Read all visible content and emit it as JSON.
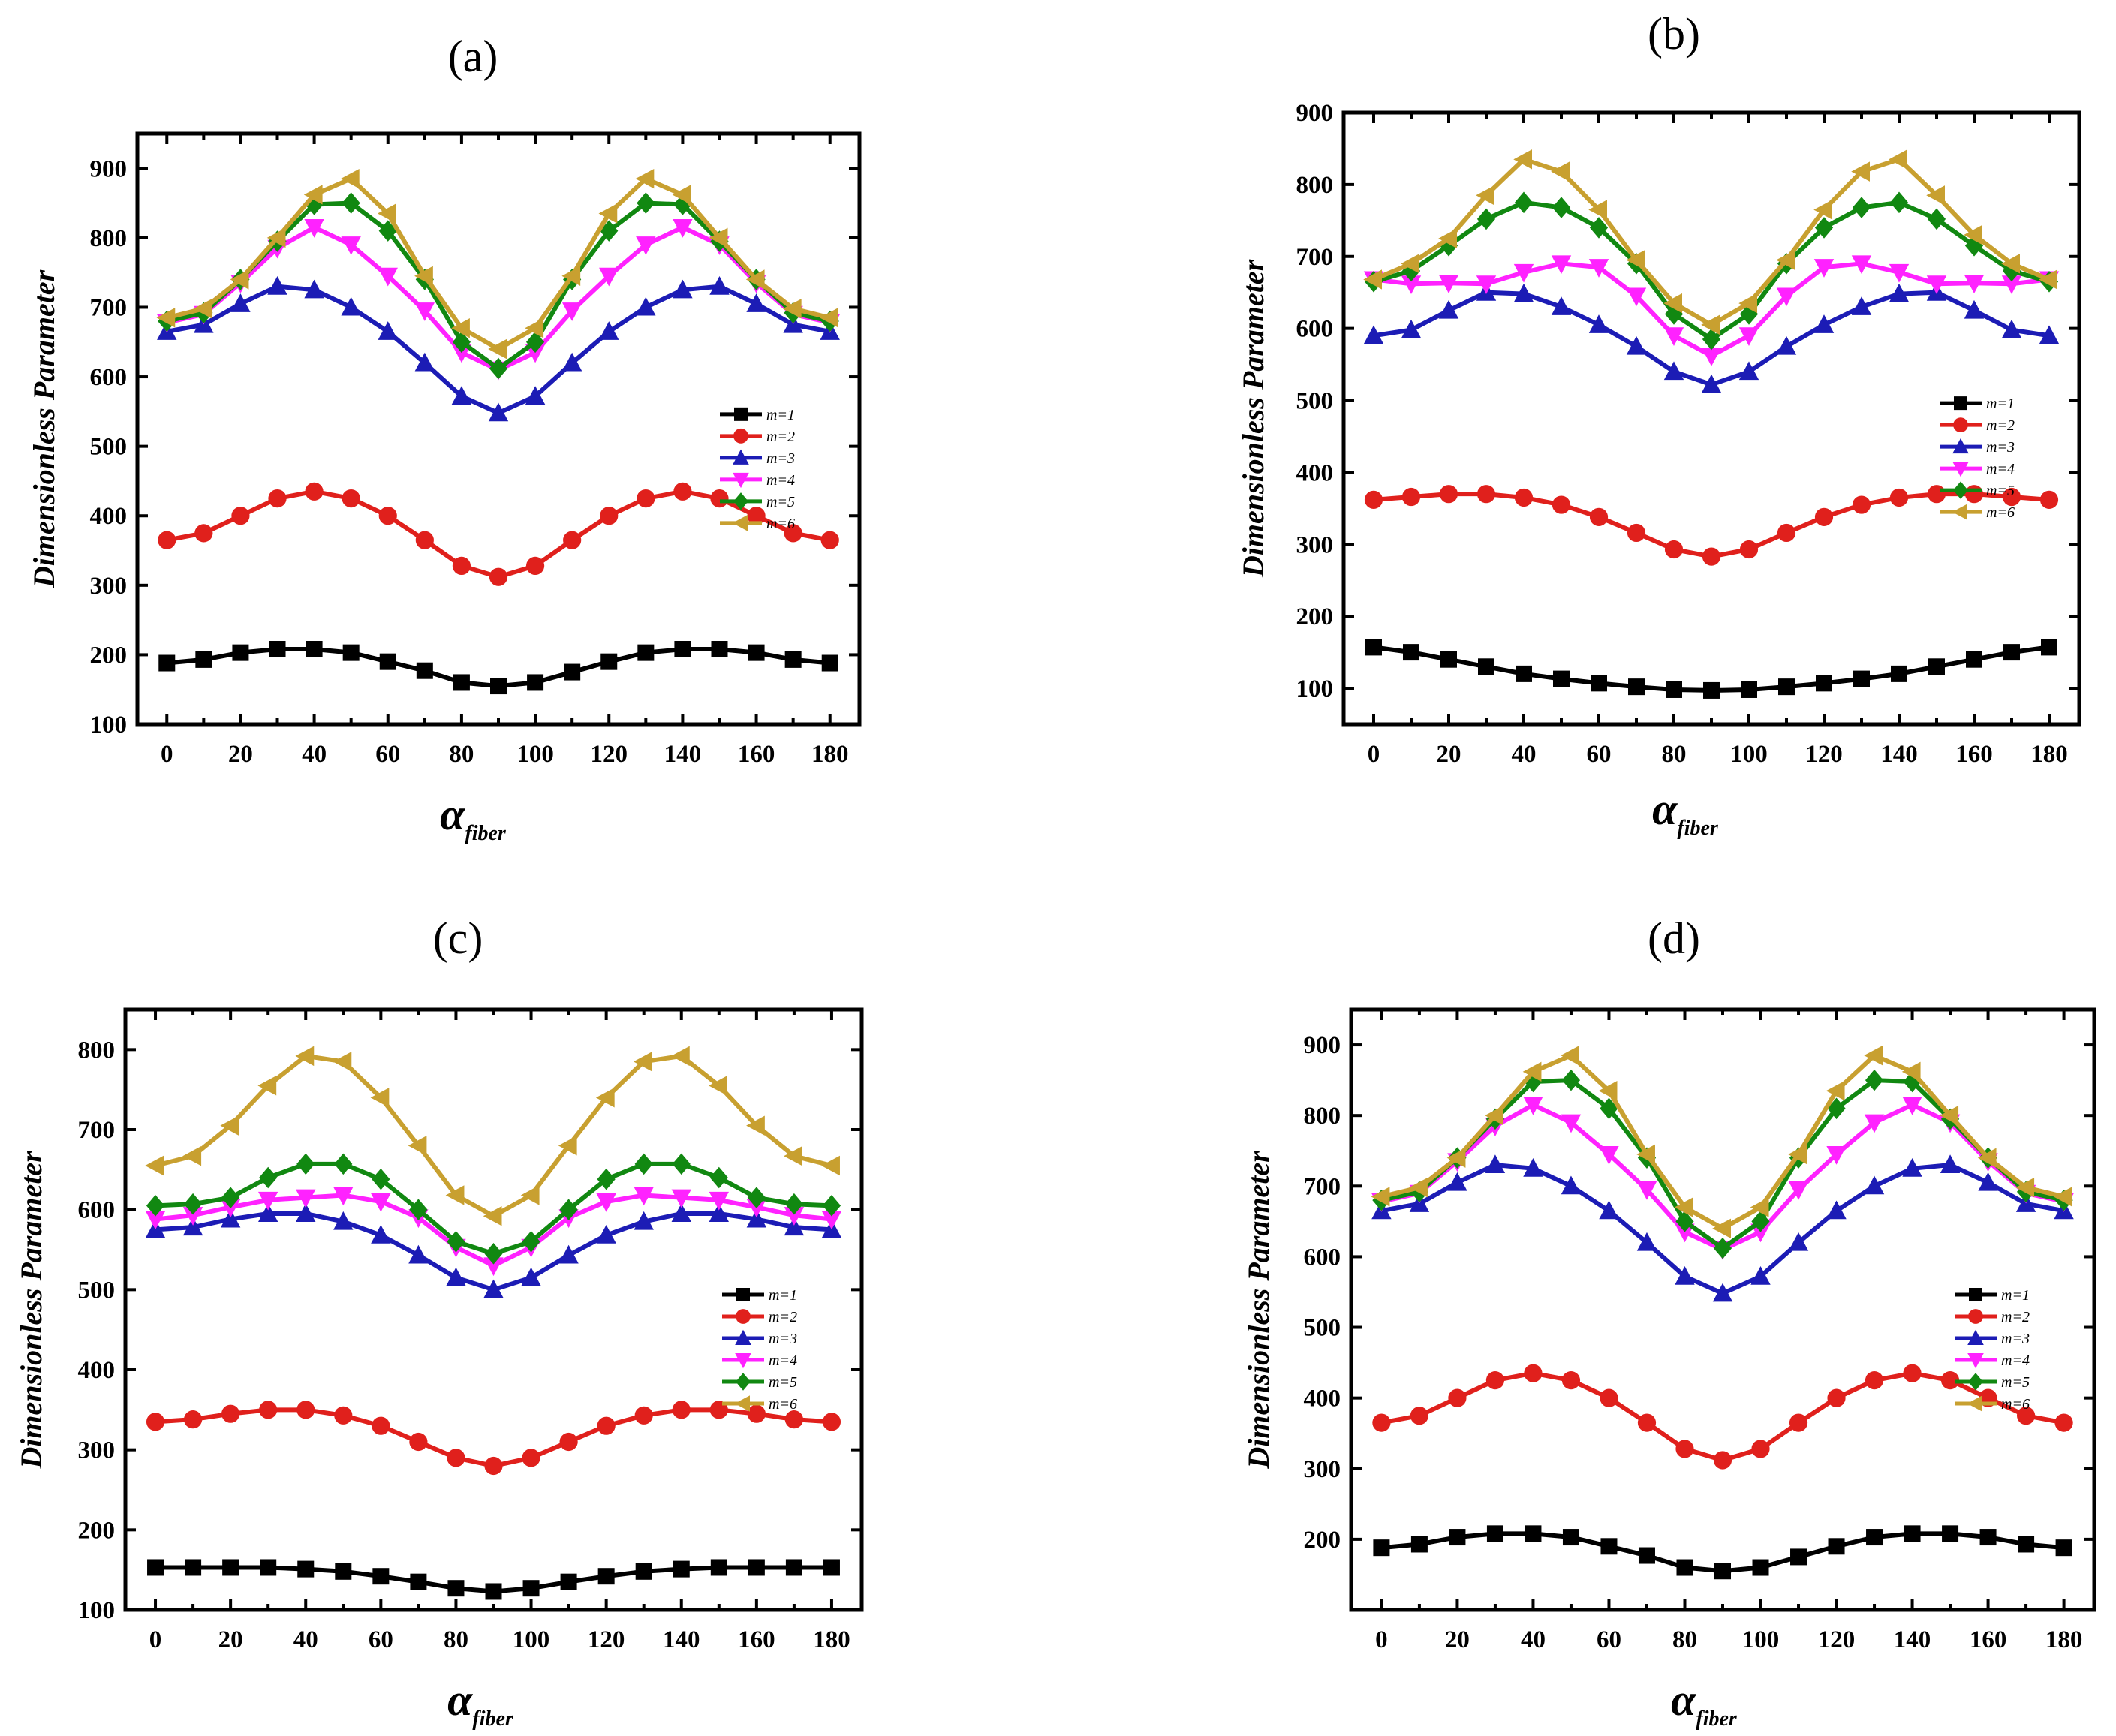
{
  "figure": {
    "xlabel_main": "α",
    "xlabel_sub": "fiber",
    "ylabel": "Dimensionless Parameter"
  },
  "chart_data": [
    {
      "panel": "(a)",
      "type": "line",
      "ylim": [
        100,
        950
      ],
      "yticks": [
        100,
        200,
        300,
        400,
        500,
        600,
        700,
        800,
        900
      ],
      "xlim": [
        -8,
        188
      ],
      "xticks": [
        0,
        20,
        40,
        60,
        80,
        100,
        120,
        140,
        160,
        180
      ],
      "xlabel": "α fiber",
      "ylabel": "Dimensionless Parameter",
      "legend_position": "right-middle",
      "x": [
        0,
        10,
        20,
        30,
        40,
        50,
        60,
        70,
        80,
        90,
        100,
        110,
        120,
        130,
        140,
        150,
        160,
        170,
        180
      ],
      "series": [
        {
          "name": "m=1",
          "color": "#000000",
          "marker": "square",
          "values": [
            188,
            193,
            203,
            208,
            208,
            203,
            190,
            177,
            160,
            155,
            160,
            175,
            190,
            203,
            208,
            208,
            203,
            193,
            188
          ]
        },
        {
          "name": "m=2",
          "color": "#e0201c",
          "marker": "circle",
          "values": [
            365,
            375,
            400,
            425,
            435,
            425,
            400,
            365,
            328,
            312,
            328,
            365,
            400,
            425,
            435,
            425,
            400,
            375,
            365
          ]
        },
        {
          "name": "m=3",
          "color": "#1c1cb5",
          "marker": "triangle-up",
          "values": [
            665,
            675,
            705,
            730,
            725,
            700,
            665,
            620,
            572,
            548,
            572,
            620,
            665,
            700,
            725,
            730,
            705,
            675,
            665
          ]
        },
        {
          "name": "m=4",
          "color": "#ff22ff",
          "marker": "triangle-down",
          "values": [
            678,
            690,
            735,
            785,
            815,
            790,
            745,
            695,
            635,
            610,
            635,
            695,
            745,
            790,
            815,
            790,
            735,
            690,
            678
          ]
        },
        {
          "name": "m=5",
          "color": "#118811",
          "marker": "diamond",
          "values": [
            680,
            692,
            740,
            795,
            848,
            850,
            810,
            740,
            650,
            612,
            650,
            740,
            810,
            850,
            848,
            795,
            740,
            692,
            680
          ]
        },
        {
          "name": "m=6",
          "color": "#c8a030",
          "marker": "triangle-left",
          "values": [
            685,
            698,
            740,
            800,
            862,
            885,
            835,
            745,
            670,
            640,
            670,
            745,
            835,
            885,
            862,
            800,
            740,
            698,
            685
          ]
        }
      ]
    },
    {
      "panel": "(b)",
      "type": "line",
      "ylim": [
        50,
        900
      ],
      "yticks": [
        100,
        200,
        300,
        400,
        500,
        600,
        700,
        800,
        900
      ],
      "xlim": [
        -8,
        188
      ],
      "xticks": [
        0,
        20,
        40,
        60,
        80,
        100,
        120,
        140,
        160,
        180
      ],
      "xlabel": "α fiber",
      "ylabel": "Dimensionless Parameter",
      "legend_position": "right-middle",
      "x": [
        0,
        10,
        20,
        30,
        40,
        50,
        60,
        70,
        80,
        90,
        100,
        110,
        120,
        130,
        140,
        150,
        160,
        170,
        180
      ],
      "series": [
        {
          "name": "m=1",
          "color": "#000000",
          "marker": "square",
          "values": [
            157,
            150,
            140,
            130,
            120,
            113,
            107,
            102,
            98,
            97,
            98,
            102,
            107,
            113,
            120,
            130,
            140,
            150,
            157
          ]
        },
        {
          "name": "m=2",
          "color": "#e0201c",
          "marker": "circle",
          "values": [
            362,
            366,
            370,
            370,
            365,
            355,
            338,
            316,
            293,
            283,
            293,
            316,
            338,
            355,
            365,
            370,
            370,
            366,
            362
          ]
        },
        {
          "name": "m=3",
          "color": "#1c1cb5",
          "marker": "triangle-up",
          "values": [
            590,
            598,
            625,
            650,
            648,
            630,
            605,
            575,
            540,
            522,
            540,
            575,
            605,
            630,
            648,
            650,
            625,
            598,
            590
          ]
        },
        {
          "name": "m=4",
          "color": "#ff22ff",
          "marker": "triangle-down",
          "values": [
            668,
            662,
            663,
            662,
            678,
            690,
            685,
            645,
            590,
            562,
            590,
            645,
            685,
            690,
            678,
            662,
            663,
            662,
            668
          ]
        },
        {
          "name": "m=5",
          "color": "#118811",
          "marker": "diamond",
          "values": [
            665,
            680,
            715,
            752,
            775,
            768,
            740,
            690,
            620,
            585,
            620,
            690,
            740,
            768,
            775,
            752,
            715,
            680,
            665
          ]
        },
        {
          "name": "m=6",
          "color": "#c8a030",
          "marker": "triangle-left",
          "values": [
            668,
            690,
            725,
            785,
            835,
            818,
            765,
            695,
            635,
            605,
            635,
            695,
            765,
            818,
            835,
            785,
            730,
            690,
            668
          ]
        }
      ]
    },
    {
      "panel": "(c)",
      "type": "line",
      "ylim": [
        100,
        850
      ],
      "yticks": [
        100,
        200,
        300,
        400,
        500,
        600,
        700,
        800
      ],
      "xlim": [
        -8,
        188
      ],
      "xticks": [
        0,
        20,
        40,
        60,
        80,
        100,
        120,
        140,
        160,
        180
      ],
      "xlabel": "α fiber",
      "ylabel": "Dimensionless Parameter",
      "legend_position": "right-middle",
      "x": [
        0,
        10,
        20,
        30,
        40,
        50,
        60,
        70,
        80,
        90,
        100,
        110,
        120,
        130,
        140,
        150,
        160,
        170,
        180
      ],
      "series": [
        {
          "name": "m=1",
          "color": "#000000",
          "marker": "square",
          "values": [
            153,
            153,
            153,
            153,
            151,
            148,
            142,
            135,
            127,
            123,
            127,
            135,
            142,
            148,
            151,
            153,
            153,
            153,
            153
          ]
        },
        {
          "name": "m=2",
          "color": "#e0201c",
          "marker": "circle",
          "values": [
            335,
            338,
            345,
            350,
            350,
            343,
            330,
            310,
            290,
            280,
            290,
            310,
            330,
            343,
            350,
            350,
            345,
            338,
            335
          ]
        },
        {
          "name": "m=3",
          "color": "#1c1cb5",
          "marker": "triangle-up",
          "values": [
            575,
            578,
            588,
            595,
            595,
            585,
            568,
            543,
            515,
            500,
            515,
            543,
            568,
            585,
            595,
            595,
            588,
            578,
            575
          ]
        },
        {
          "name": "m=4",
          "color": "#ff22ff",
          "marker": "triangle-down",
          "values": [
            588,
            593,
            603,
            612,
            615,
            618,
            610,
            590,
            553,
            530,
            553,
            590,
            610,
            618,
            615,
            612,
            603,
            593,
            588
          ]
        },
        {
          "name": "m=5",
          "color": "#118811",
          "marker": "diamond",
          "values": [
            605,
            607,
            615,
            640,
            657,
            657,
            638,
            600,
            560,
            545,
            560,
            600,
            638,
            657,
            657,
            640,
            615,
            607,
            605
          ]
        },
        {
          "name": "m=6",
          "color": "#c8a030",
          "marker": "triangle-left",
          "values": [
            655,
            667,
            705,
            755,
            792,
            785,
            740,
            680,
            618,
            592,
            618,
            680,
            740,
            785,
            792,
            755,
            705,
            667,
            655
          ]
        }
      ]
    },
    {
      "panel": "(d)",
      "type": "line",
      "ylim": [
        100,
        950
      ],
      "yticks": [
        200,
        300,
        400,
        500,
        600,
        700,
        800,
        900
      ],
      "xlim": [
        -8,
        188
      ],
      "xticks": [
        0,
        20,
        40,
        60,
        80,
        100,
        120,
        140,
        160,
        180
      ],
      "xlabel": "α fiber",
      "ylabel": "Dimensionless Parameter",
      "legend_position": "right-middle",
      "x": [
        0,
        10,
        20,
        30,
        40,
        50,
        60,
        70,
        80,
        90,
        100,
        110,
        120,
        130,
        140,
        150,
        160,
        170,
        180
      ],
      "series": [
        {
          "name": "m=1",
          "color": "#000000",
          "marker": "square",
          "values": [
            188,
            193,
            203,
            208,
            208,
            203,
            190,
            177,
            160,
            155,
            160,
            175,
            190,
            203,
            208,
            208,
            203,
            193,
            188
          ]
        },
        {
          "name": "m=2",
          "color": "#e0201c",
          "marker": "circle",
          "values": [
            365,
            375,
            400,
            425,
            435,
            425,
            400,
            365,
            328,
            312,
            328,
            365,
            400,
            425,
            435,
            425,
            400,
            375,
            365
          ]
        },
        {
          "name": "m=3",
          "color": "#1c1cb5",
          "marker": "triangle-up",
          "values": [
            665,
            675,
            705,
            730,
            725,
            700,
            665,
            620,
            572,
            548,
            572,
            620,
            665,
            700,
            725,
            730,
            705,
            675,
            665
          ]
        },
        {
          "name": "m=4",
          "color": "#ff22ff",
          "marker": "triangle-down",
          "values": [
            678,
            690,
            735,
            785,
            815,
            790,
            745,
            695,
            635,
            610,
            635,
            695,
            745,
            790,
            815,
            790,
            735,
            690,
            678
          ]
        },
        {
          "name": "m=5",
          "color": "#118811",
          "marker": "diamond",
          "values": [
            680,
            692,
            740,
            795,
            848,
            850,
            810,
            740,
            650,
            612,
            650,
            740,
            810,
            850,
            848,
            795,
            740,
            692,
            680
          ]
        },
        {
          "name": "m=6",
          "color": "#c8a030",
          "marker": "triangle-left",
          "values": [
            685,
            698,
            740,
            800,
            862,
            885,
            835,
            745,
            670,
            640,
            670,
            745,
            835,
            885,
            862,
            800,
            740,
            698,
            685
          ]
        }
      ]
    }
  ]
}
